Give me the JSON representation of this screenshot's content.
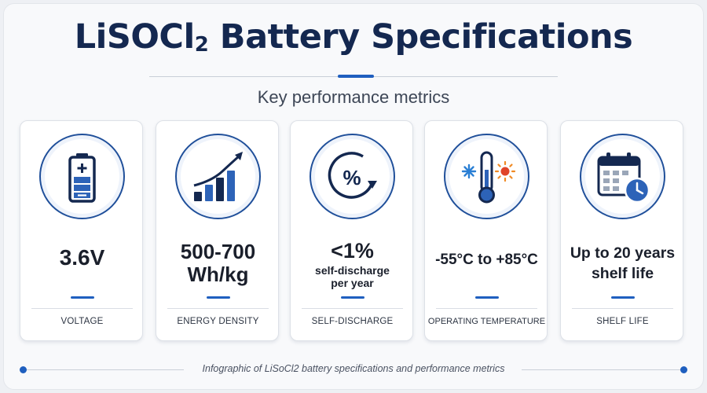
{
  "header": {
    "title_main": "LiSOCl",
    "title_sub": "2",
    "title_tail": " Battery Specifications",
    "subtitle": "Key performance metrics"
  },
  "cards": [
    {
      "icon": "battery-icon",
      "value": "3.6V",
      "value_sub": "",
      "label": "VOLTAGE"
    },
    {
      "icon": "growth-chart-icon",
      "value": "500-700\nWh/kg",
      "value_sub": "",
      "label": "ENERGY DENSITY"
    },
    {
      "icon": "percent-cycle-icon",
      "value": "<1%",
      "value_sub": "self-discharge\nper year",
      "label": "SELF-DISCHARGE"
    },
    {
      "icon": "thermometer-icon",
      "value": "-55°C to +85°C",
      "value_sub": "",
      "label": "OPERATING TEMPERATURE"
    },
    {
      "icon": "calendar-clock-icon",
      "value": "Up to 20 years\nshelf life",
      "value_sub": "",
      "label": "SHELF LIFE"
    }
  ],
  "footer": {
    "caption": "Infographic of LiSoCl2 battery specifications and performance metrics"
  },
  "colors": {
    "navy": "#142850",
    "accent_blue": "#1f5fbf",
    "snow_blue": "#2a7fd4",
    "sun_orange": "#f08a24",
    "sun_red": "#e0442a"
  }
}
